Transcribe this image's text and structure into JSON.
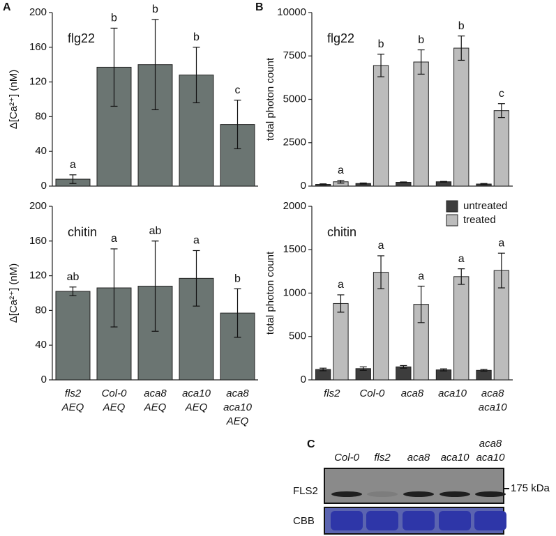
{
  "panel_labels": [
    "A",
    "B",
    "C"
  ],
  "chart_data": [
    {
      "type": "bar",
      "title": "flg22",
      "y_label": "Δ[Ca²⁺] (nM)",
      "values": [
        8,
        137,
        140,
        128,
        71
      ],
      "errors": [
        5,
        45,
        52,
        32,
        28
      ],
      "annotations": [
        "a",
        "b",
        "b",
        "b",
        "c"
      ],
      "color": "#6b7572",
      "ylim": [
        0,
        200
      ],
      "yticks": [
        0,
        40,
        80,
        120,
        160,
        200
      ]
    },
    {
      "type": "bar",
      "title": "chitin",
      "y_label": "Δ[Ca²⁺] (nM)",
      "categories": [
        [
          "fls2",
          "AEQ"
        ],
        [
          "Col-0",
          "AEQ"
        ],
        [
          "aca8",
          "AEQ"
        ],
        [
          "aca10",
          "AEQ"
        ],
        [
          "aca8",
          "aca10",
          "AEQ"
        ]
      ],
      "values": [
        102,
        106,
        108,
        117,
        77
      ],
      "errors": [
        5,
        45,
        52,
        32,
        28
      ],
      "annotations": [
        "ab",
        "a",
        "ab",
        "a",
        "b"
      ],
      "color": "#6b7572",
      "ylim": [
        0,
        200
      ],
      "yticks": [
        0,
        40,
        80,
        120,
        160,
        200
      ]
    },
    {
      "type": "grouped_bar",
      "title": "flg22",
      "y_label": "total photon count",
      "series": [
        {
          "color": "#3d3d3d",
          "values": [
            100,
            150,
            220,
            250,
            120
          ],
          "errors": [
            30,
            30,
            20,
            20,
            30
          ]
        },
        {
          "color": "#bcbcbc",
          "values": [
            250,
            6950,
            7150,
            7950,
            4350
          ],
          "errors": [
            80,
            650,
            700,
            700,
            400
          ],
          "annotations": [
            "a",
            "b",
            "b",
            "b",
            "c"
          ]
        }
      ],
      "ylim": [
        0,
        10000
      ],
      "yticks": [
        0,
        2500,
        5000,
        7500,
        10000
      ]
    },
    {
      "type": "grouped_bar",
      "title": "chitin",
      "y_label": "total photon count",
      "categories": [
        [
          "fls2"
        ],
        [
          "Col-0"
        ],
        [
          "aca8"
        ],
        [
          "aca10"
        ],
        [
          "aca8",
          "aca10"
        ]
      ],
      "series": [
        {
          "name": "untreated",
          "color": "#3d3d3d",
          "values": [
            120,
            130,
            150,
            115,
            110
          ],
          "errors": [
            15,
            20,
            15,
            12,
            10
          ]
        },
        {
          "name": "treated",
          "color": "#bcbcbc",
          "values": [
            880,
            1240,
            870,
            1190,
            1260
          ],
          "errors": [
            100,
            190,
            210,
            90,
            200
          ],
          "annotations": [
            "a",
            "a",
            "a",
            "a",
            "a"
          ]
        }
      ],
      "ylim": [
        0,
        2000
      ],
      "yticks": [
        0,
        500,
        1000,
        1500,
        2000
      ],
      "legend": "upper right"
    }
  ],
  "blot": {
    "lanes": [
      [
        "Col-0"
      ],
      [
        "fls2"
      ],
      [
        "aca8"
      ],
      [
        "aca10"
      ],
      [
        "aca8",
        "aca10"
      ]
    ],
    "rows": [
      "FLS2",
      "CBB"
    ],
    "marker": "175 kDa"
  }
}
